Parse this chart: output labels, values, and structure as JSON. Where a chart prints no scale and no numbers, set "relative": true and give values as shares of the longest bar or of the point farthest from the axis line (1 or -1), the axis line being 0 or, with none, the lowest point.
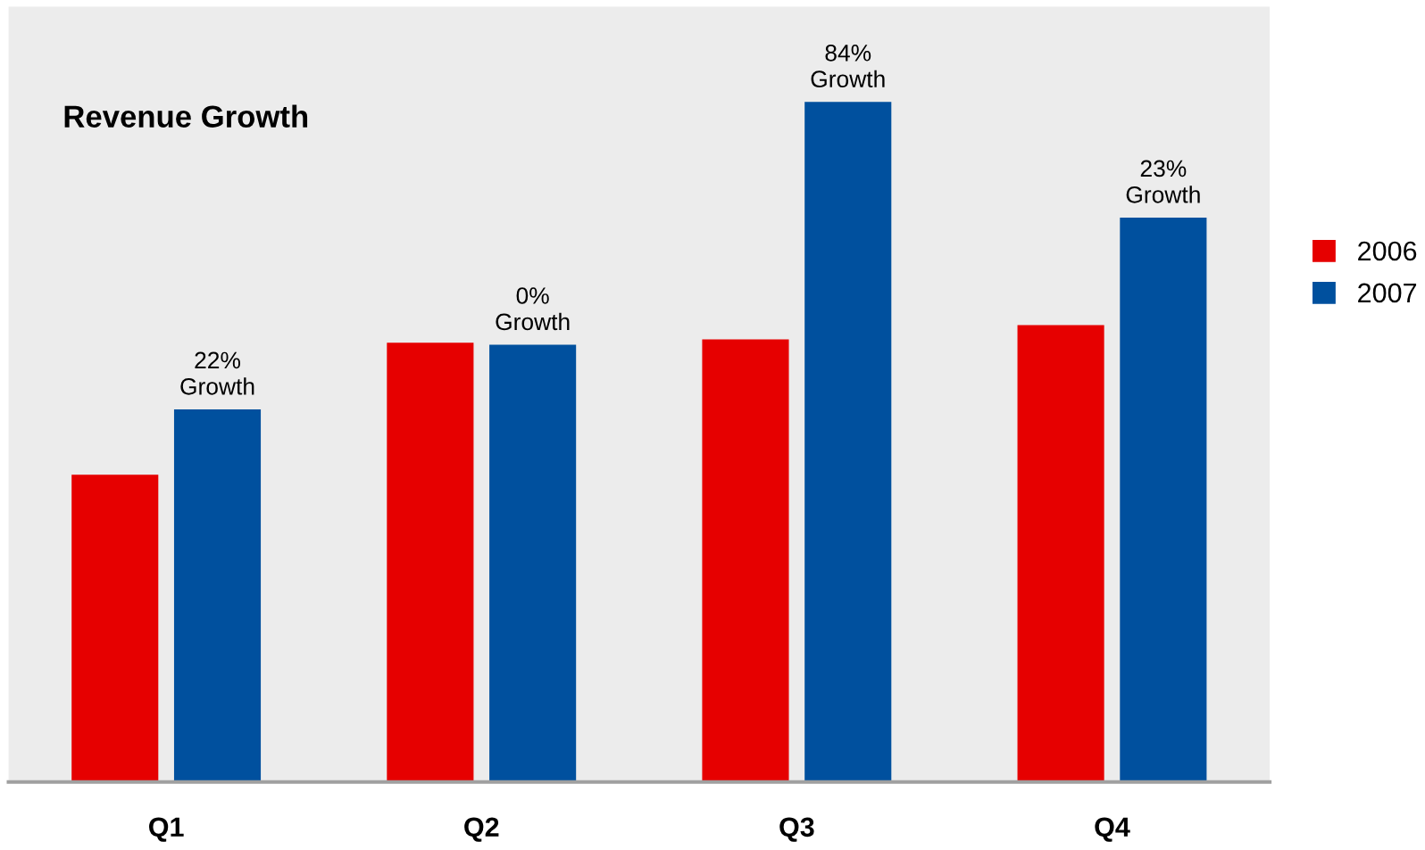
{
  "chart_data": {
    "type": "bar",
    "title": "Revenue Growth",
    "relative": true,
    "categories": [
      "Q1",
      "Q2",
      "Q3",
      "Q4"
    ],
    "series": [
      {
        "name": "2006",
        "color": "#e60000",
        "values": [
          0.452,
          0.646,
          0.651,
          0.672
        ]
      },
      {
        "name": "2007",
        "color": "#00509e",
        "values": [
          0.548,
          0.643,
          1,
          0.83
        ]
      }
    ],
    "annotations": [
      "22%\nGrowth",
      "0%\nGrowth",
      "84%\nGrowth",
      "23%\nGrowth"
    ],
    "legend": "right",
    "grid": false
  }
}
